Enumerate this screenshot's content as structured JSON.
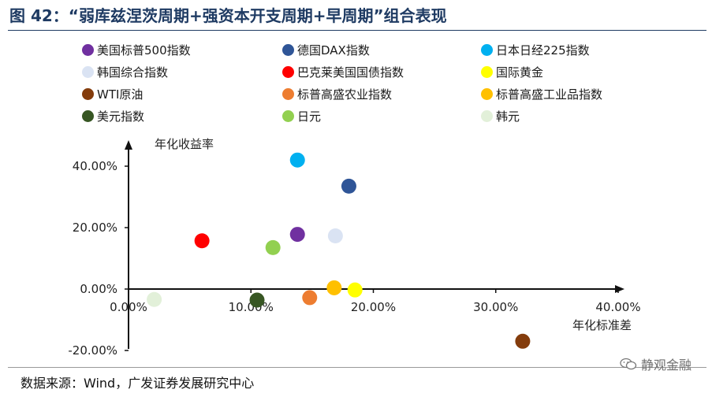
{
  "title": "图 42：“弱库兹涅茨周期+强资本开支周期+早周期”组合表现",
  "source": "数据来源：Wind，广发证券发展研究中心",
  "watermark": "静观金融",
  "chart_data": {
    "type": "scatter",
    "xlabel": "年化标准差",
    "ylabel": "年化收益率",
    "xlim": [
      0,
      0.4
    ],
    "ylim": [
      -0.2,
      0.5
    ],
    "x_ticks": [
      "0.00%",
      "10.00%",
      "20.00%",
      "30.00%",
      "40.00%"
    ],
    "y_ticks": [
      "-20.00%",
      "0.00%",
      "20.00%",
      "40.00%"
    ],
    "x_tick_values": [
      0,
      0.1,
      0.2,
      0.3,
      0.4
    ],
    "y_tick_values": [
      -0.2,
      0,
      0.2,
      0.4
    ],
    "legend_placement": "top",
    "series": [
      {
        "name": "美国标普500指数",
        "color": "#7030a0",
        "x": 0.138,
        "y": 0.178
      },
      {
        "name": "德国DAX指数",
        "color": "#2f5597",
        "x": 0.18,
        "y": 0.335
      },
      {
        "name": "日本日经225指数",
        "color": "#00b0f0",
        "x": 0.138,
        "y": 0.42
      },
      {
        "name": "韩国综合指数",
        "color": "#dae3f3",
        "x": 0.169,
        "y": 0.173
      },
      {
        "name": "巴克莱美国国债指数",
        "color": "#ff0000",
        "x": 0.06,
        "y": 0.157
      },
      {
        "name": "国际黄金",
        "color": "#ffff00",
        "x": 0.185,
        "y": -0.003
      },
      {
        "name": "WTI原油",
        "color": "#843c0c",
        "x": 0.322,
        "y": -0.17
      },
      {
        "name": "标普高盛农业指数",
        "color": "#ed7d31",
        "x": 0.148,
        "y": -0.028
      },
      {
        "name": "标普高盛工业品指数",
        "color": "#ffc000",
        "x": 0.168,
        "y": 0.004
      },
      {
        "name": "美元指数",
        "color": "#375623",
        "x": 0.105,
        "y": -0.036
      },
      {
        "name": "日元",
        "color": "#92d050",
        "x": 0.118,
        "y": 0.135
      },
      {
        "name": "韩元",
        "color": "#e2f0d9",
        "x": 0.021,
        "y": -0.034
      }
    ]
  }
}
